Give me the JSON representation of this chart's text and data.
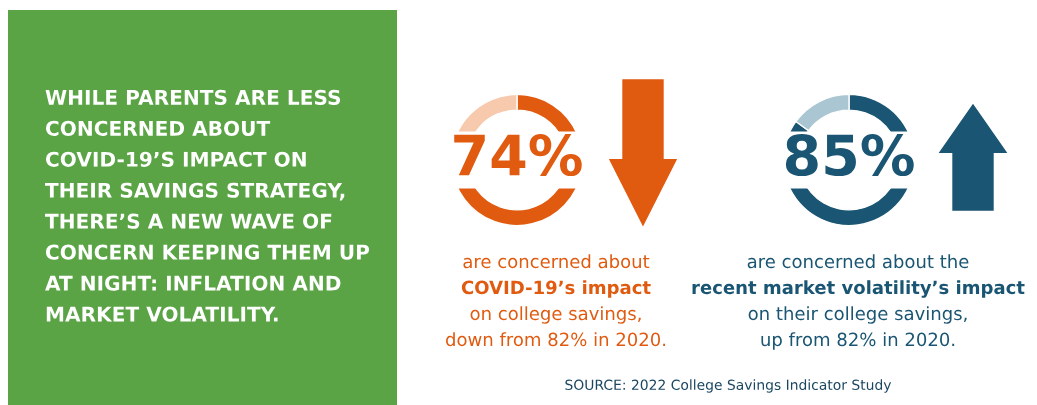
{
  "chart_data": [
    {
      "type": "other",
      "title": "WHILE PARENTS ARE LESS\nCONCERNED ABOUT\nCOVID-19’S IMPACT ON\nTHEIR SAVINGS STRATEGY,\nTHERE’S A NEW WAVE OF\nCONCERN KEEPING THEM UP\nAT NIGHT: INFLATION AND\nMARKET VOLATILITY."
    },
    {
      "type": "donut",
      "categories": [
        null,
        null
      ],
      "values": [
        74,
        26
      ],
      "colors": [
        "#e05a0f",
        "#f7c9ad"
      ],
      "value_labels": [
        "74%",
        null
      ],
      "annotations": [
        "are concerned about",
        "COVID-19’s impact",
        "on college savings,",
        "down from 82% in 2020."
      ]
    },
    {
      "type": "donut",
      "categories": [
        null,
        null
      ],
      "values": [
        85,
        15
      ],
      "colors": [
        "#1a5673",
        "#aac6d3"
      ],
      "value_labels": [
        "85%",
        null
      ],
      "annotations": [
        "are concerned about the",
        "recent market volatility’s impact",
        "on their college savings,",
        "up from 82% in 2020.",
        "SOURCE: 2022 College Savings Indicator Study"
      ]
    }
  ]
}
